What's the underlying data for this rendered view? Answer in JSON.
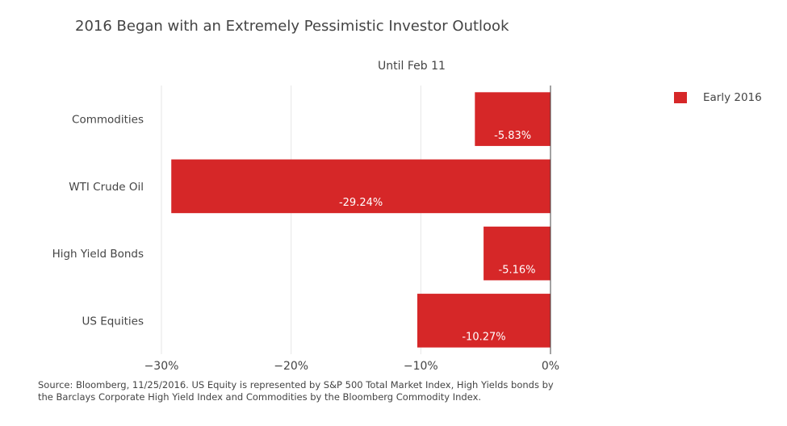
{
  "chart_data": {
    "type": "bar",
    "orientation": "horizontal",
    "title": "2016 Began with an Extremely Pessimistic Investor Outlook",
    "subtitle": "Until Feb 11",
    "categories": [
      "Commodities",
      "WTI Crude Oil",
      "High Yield Bonds",
      "US Equities"
    ],
    "series": [
      {
        "name": "Early 2016",
        "values": [
          -5.83,
          -29.24,
          -5.16,
          -10.27
        ],
        "labels": [
          "-5.83%",
          "-29.24%",
          "-5.16%",
          "-10.27%"
        ]
      }
    ],
    "xlim": [
      -30,
      0
    ],
    "xticks": [
      -30,
      -20,
      -10,
      0
    ],
    "xtick_labels": [
      "−30%",
      "−20%",
      "−10%",
      "0%"
    ],
    "grid": true,
    "legend_position": "top-right",
    "bar_color": "#d62728"
  },
  "source_lines": [
    "Source: Bloomberg, 11/25/2016.  US Equity is represented by S&P 500 Total Market Index, High Yields bonds by",
    "the Barclays Corporate High Yield Index and Commodities by the Bloomberg Commodity Index."
  ]
}
